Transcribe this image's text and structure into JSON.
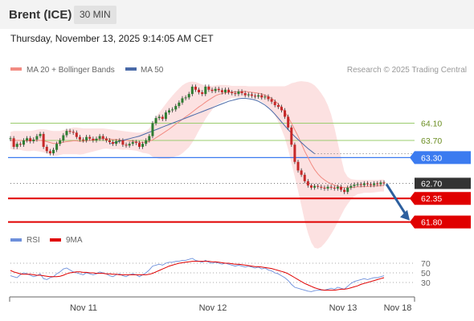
{
  "header": {
    "symbol": "Brent (ICE)",
    "timeframe": "30 MIN"
  },
  "timestamp": "Thursday, November 13, 2025 9:14:05 AM CET",
  "legend": {
    "ma20": "MA 20 + Bollinger Bands",
    "ma50": "MA 50",
    "credit": "Research © 2025 Trading Central"
  },
  "rsi_legend": {
    "rsi": "RSI",
    "ma9": "9MA"
  },
  "colors": {
    "ma20": "#f28b82",
    "ma50": "#4a6aa8",
    "bands": "#fcdcdc",
    "resistance": "#9bcc6e",
    "pivot": "#3b7bf0",
    "support": "#e00000",
    "last": "#333333",
    "up": "#2e7d32",
    "down": "#c62828",
    "rsi": "#6d8fdb",
    "rsi_ma": "#e00000",
    "arrow": "#2d5f9e"
  },
  "chart_data": [
    {
      "type": "candlestick",
      "title": "",
      "ylim": [
        61.7,
        65.1
      ],
      "x_labels": [
        "Nov 11",
        "Nov 12",
        "Nov 13",
        "Nov 18"
      ],
      "levels": [
        {
          "value": 64.1,
          "label": "64.10",
          "kind": "resistance"
        },
        {
          "value": 63.7,
          "label": "63.70",
          "kind": "resistance"
        },
        {
          "value": 63.3,
          "label": "63.30",
          "kind": "pivot"
        },
        {
          "value": 62.7,
          "label": "62.70",
          "kind": "last"
        },
        {
          "value": 62.35,
          "label": "62.35",
          "kind": "support"
        },
        {
          "value": 61.8,
          "label": "61.80",
          "kind": "support"
        }
      ],
      "close": [
        63.75,
        63.55,
        63.62,
        63.6,
        63.7,
        63.75,
        63.68,
        63.72,
        63.8,
        63.85,
        63.55,
        63.45,
        63.4,
        63.48,
        63.62,
        63.7,
        63.82,
        63.92,
        63.9,
        63.88,
        63.78,
        63.72,
        63.7,
        63.78,
        63.74,
        63.7,
        63.74,
        63.8,
        63.74,
        63.7,
        63.66,
        63.62,
        63.68,
        63.7,
        63.6,
        63.58,
        63.62,
        63.66,
        63.64,
        63.55,
        63.62,
        63.7,
        63.8,
        64.1,
        64.22,
        64.25,
        64.2,
        64.35,
        64.4,
        64.42,
        64.5,
        64.58,
        64.68,
        64.7,
        64.78,
        64.95,
        64.88,
        64.82,
        64.78,
        64.95,
        64.88,
        64.85,
        64.9,
        64.87,
        64.82,
        64.88,
        64.82,
        64.8,
        64.78,
        64.84,
        64.8,
        64.75,
        64.77,
        64.74,
        64.72,
        64.75,
        64.7,
        64.72,
        64.66,
        64.6,
        64.52,
        64.48,
        64.4,
        64.25,
        64.0,
        63.6,
        63.2,
        63.0,
        62.9,
        62.75,
        62.65,
        62.6,
        62.64,
        62.62,
        62.6,
        62.58,
        62.62,
        62.6,
        62.58,
        62.62,
        62.55,
        62.5,
        62.6,
        62.64,
        62.67,
        62.68,
        62.66,
        62.7,
        62.68,
        62.66,
        62.7,
        62.68,
        62.72,
        62.7
      ],
      "ma20": [
        63.7,
        63.7,
        63.7,
        63.7,
        63.69,
        63.69,
        63.69,
        63.7,
        63.7,
        63.7,
        63.69,
        63.67,
        63.65,
        63.63,
        63.63,
        63.64,
        63.66,
        63.67,
        63.68,
        63.69,
        63.69,
        63.68,
        63.68,
        63.69,
        63.7,
        63.71,
        63.72,
        63.73,
        63.74,
        63.74,
        63.73,
        63.72,
        63.72,
        63.71,
        63.7,
        63.7,
        63.69,
        63.68,
        63.67,
        63.66,
        63.65,
        63.66,
        63.68,
        63.71,
        63.76,
        63.81,
        63.86,
        63.91,
        63.96,
        64.02,
        64.08,
        64.13,
        64.19,
        64.25,
        64.3,
        64.36,
        64.42,
        64.48,
        64.53,
        64.59,
        64.64,
        64.69,
        64.74,
        64.77,
        64.79,
        64.81,
        64.82,
        64.83,
        64.83,
        64.83,
        64.84,
        64.84,
        64.83,
        64.82,
        64.81,
        64.8,
        64.78,
        64.75,
        64.72,
        64.68,
        64.62,
        64.55,
        64.46,
        64.36,
        64.24,
        64.1,
        63.95,
        63.8,
        63.63,
        63.45,
        63.3,
        63.15,
        63.02,
        62.92,
        62.84,
        62.78,
        62.73,
        62.69,
        62.66,
        62.63,
        62.61,
        62.6,
        62.6,
        62.6,
        62.61,
        62.62,
        62.62,
        62.63,
        62.63,
        62.63,
        62.64,
        62.64,
        62.65,
        62.65
      ],
      "ma50": [
        null,
        null,
        null,
        null,
        null,
        null,
        null,
        null,
        null,
        null,
        null,
        null,
        null,
        null,
        null,
        null,
        null,
        null,
        null,
        null,
        null,
        null,
        null,
        null,
        null,
        null,
        null,
        null,
        null,
        null,
        63.62,
        63.64,
        63.66,
        63.68,
        63.7,
        63.72,
        63.74,
        63.76,
        63.78,
        63.8,
        63.83,
        63.86,
        63.89,
        63.92,
        63.95,
        63.98,
        64.01,
        64.04,
        64.07,
        64.1,
        64.13,
        64.16,
        64.19,
        64.22,
        64.25,
        64.28,
        64.31,
        64.34,
        64.37,
        64.4,
        64.43,
        64.46,
        64.49,
        64.52,
        64.55,
        64.58,
        64.61,
        64.63,
        64.65,
        64.67,
        64.68,
        64.68,
        64.67,
        64.66,
        64.64,
        64.61,
        64.57,
        64.52,
        64.46,
        64.39,
        64.31,
        64.22,
        64.13,
        64.04,
        63.95,
        63.87,
        63.79,
        63.72,
        63.65,
        63.58,
        63.51,
        63.45,
        63.39
      ],
      "bb_upper": [
        63.9,
        63.92,
        63.92,
        63.92,
        63.92,
        63.92,
        63.92,
        63.93,
        63.95,
        63.96,
        63.96,
        63.95,
        63.93,
        63.92,
        63.92,
        63.92,
        63.94,
        63.96,
        63.98,
        64.0,
        64.0,
        63.99,
        63.98,
        63.98,
        63.98,
        63.98,
        63.98,
        63.98,
        63.98,
        63.97,
        63.96,
        63.95,
        63.94,
        63.93,
        63.92,
        63.91,
        63.9,
        63.89,
        63.88,
        63.88,
        63.89,
        63.92,
        63.98,
        64.1,
        64.23,
        64.35,
        64.45,
        64.55,
        64.65,
        64.74,
        64.83,
        64.91,
        64.98,
        65.03,
        65.06,
        65.07,
        65.06,
        65.03,
        65.0,
        64.98,
        64.97,
        64.97,
        64.98,
        64.99,
        64.99,
        64.99,
        64.98,
        64.97,
        64.97,
        64.97,
        64.97,
        64.97,
        64.96,
        64.96,
        64.96,
        64.96,
        64.96,
        64.96,
        64.96,
        64.96,
        64.96,
        64.96,
        64.96,
        64.96,
        64.99,
        65.03,
        65.05,
        65.07,
        65.08,
        65.07,
        65.06,
        65.03,
        64.98,
        64.9,
        64.8,
        64.68,
        64.52,
        64.3,
        64.0,
        63.65,
        63.3,
        62.98,
        62.85,
        62.8,
        62.79,
        62.78,
        62.78,
        62.78,
        62.78,
        62.78,
        62.78,
        62.78,
        62.79,
        62.79
      ],
      "bb_lower": [
        63.5,
        63.48,
        63.48,
        63.48,
        63.46,
        63.45,
        63.45,
        63.46,
        63.45,
        63.44,
        63.42,
        63.39,
        63.37,
        63.34,
        63.34,
        63.36,
        63.38,
        63.38,
        63.38,
        63.38,
        63.38,
        63.37,
        63.38,
        63.4,
        63.42,
        63.44,
        63.46,
        63.48,
        63.5,
        63.51,
        63.5,
        63.49,
        63.5,
        63.49,
        63.48,
        63.49,
        63.48,
        63.47,
        63.46,
        63.44,
        63.41,
        63.4,
        63.38,
        63.32,
        63.29,
        63.27,
        63.27,
        63.27,
        63.27,
        63.3,
        63.33,
        63.35,
        63.4,
        63.47,
        63.54,
        63.65,
        63.78,
        63.93,
        64.06,
        64.2,
        64.31,
        64.41,
        64.5,
        64.55,
        64.59,
        64.63,
        64.66,
        64.69,
        64.69,
        64.69,
        64.71,
        64.71,
        64.7,
        64.68,
        64.66,
        64.64,
        64.6,
        64.54,
        64.48,
        64.4,
        64.28,
        64.14,
        63.96,
        63.76,
        63.49,
        63.17,
        62.85,
        62.53,
        62.18,
        61.83,
        61.54,
        61.32,
        61.2,
        61.18,
        61.22,
        61.3,
        61.4,
        61.52,
        61.65,
        61.8,
        61.95,
        62.1,
        62.22,
        62.32,
        62.4,
        62.45,
        62.46,
        62.48,
        62.48,
        62.48,
        62.49,
        62.5,
        62.51,
        62.51
      ],
      "forecast": {
        "from": 62.7,
        "to": 61.8
      }
    },
    {
      "type": "line",
      "title": "",
      "ylim": [
        0,
        100
      ],
      "levels": [
        70,
        50,
        30
      ],
      "series": [
        {
          "name": "RSI",
          "values": [
            44,
            42,
            40,
            46,
            50,
            48,
            45,
            42,
            44,
            48,
            38,
            36,
            40,
            42,
            48,
            52,
            58,
            60,
            56,
            52,
            50,
            48,
            46,
            50,
            48,
            46,
            48,
            52,
            50,
            48,
            44,
            42,
            46,
            48,
            44,
            42,
            46,
            48,
            46,
            42,
            46,
            50,
            56,
            64,
            66,
            68,
            66,
            70,
            72,
            72,
            74,
            74,
            76,
            76,
            78,
            80,
            76,
            74,
            72,
            76,
            72,
            70,
            72,
            70,
            68,
            70,
            68,
            66,
            64,
            66,
            64,
            62,
            64,
            62,
            60,
            62,
            58,
            60,
            56,
            54,
            50,
            48,
            44,
            40,
            34,
            26,
            20,
            18,
            16,
            14,
            12,
            11,
            13,
            14,
            14,
            14,
            16,
            18,
            16,
            20,
            18,
            16,
            22,
            28,
            32,
            34,
            36,
            38,
            36,
            38,
            40,
            40,
            42,
            44
          ]
        },
        {
          "name": "9MA",
          "values": [
            55,
            52,
            50,
            48,
            47,
            47,
            47,
            46,
            45,
            45,
            44,
            43,
            42,
            42,
            42,
            43,
            45,
            48,
            50,
            51,
            52,
            52,
            51,
            51,
            50,
            50,
            49,
            49,
            49,
            48,
            48,
            47,
            47,
            46,
            46,
            46,
            46,
            46,
            46,
            46,
            46,
            46,
            47,
            49,
            52,
            55,
            58,
            61,
            64,
            66,
            68,
            70,
            71,
            72,
            73,
            74,
            74,
            74,
            74,
            74,
            74,
            73,
            73,
            72,
            71,
            70,
            70,
            69,
            68,
            68,
            67,
            66,
            65,
            64,
            63,
            63,
            62,
            61,
            60,
            59,
            57,
            55,
            53,
            51,
            48,
            44,
            40,
            36,
            32,
            28,
            25,
            22,
            19,
            17,
            15,
            14,
            14,
            14,
            14,
            15,
            16,
            16,
            17,
            19,
            21,
            23,
            26,
            28,
            30,
            32,
            34,
            36,
            38,
            40
          ]
        }
      ]
    }
  ]
}
